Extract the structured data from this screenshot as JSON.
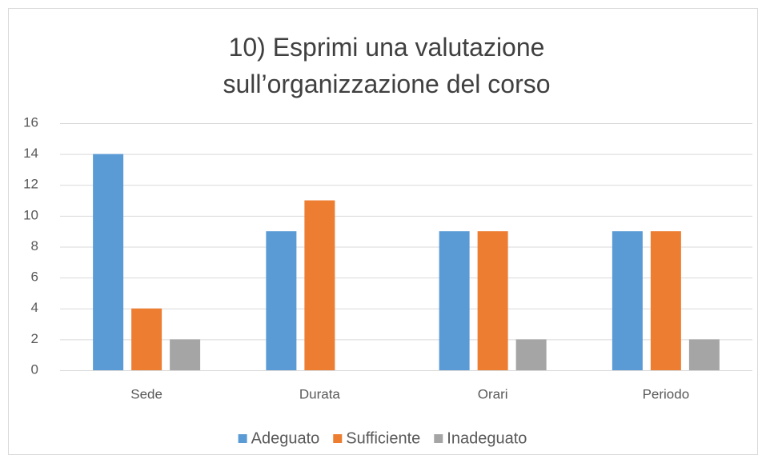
{
  "chart_data": {
    "type": "bar",
    "title": "10) Esprimi una valutazione sull’organizzazione del corso",
    "categories": [
      "Sede",
      "Durata",
      "Orari",
      "Periodo"
    ],
    "series": [
      {
        "name": "Adeguato",
        "color": "#5b9bd5",
        "values": [
          14,
          9,
          9,
          9
        ]
      },
      {
        "name": "Sufficiente",
        "color": "#ed7d31",
        "values": [
          4,
          11,
          9,
          9
        ]
      },
      {
        "name": "Inadeguato",
        "color": "#a5a5a5",
        "values": [
          2,
          0,
          2,
          2
        ]
      }
    ],
    "ylim": [
      0,
      16
    ],
    "yticks": [
      0,
      2,
      4,
      6,
      8,
      10,
      12,
      14,
      16
    ],
    "grid": true,
    "legend": "bottom"
  }
}
